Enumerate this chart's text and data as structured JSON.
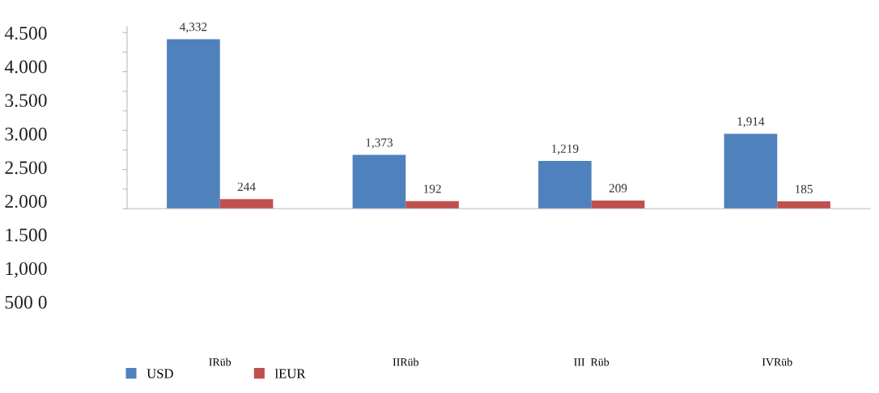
{
  "chart_data": {
    "type": "bar",
    "categories": [
      "IRüb",
      "IIRüb",
      "III  Rüb",
      "IVRüb"
    ],
    "series": [
      {
        "name": "USD",
        "color": "#4f81bd",
        "values": [
          4332,
          1373,
          1219,
          1914
        ],
        "value_labels": [
          "4,332",
          "1,373",
          "1,219",
          "1,914"
        ]
      },
      {
        "name": "lEUR",
        "color": "#c0504d",
        "values": [
          244,
          192,
          209,
          185
        ],
        "value_labels": [
          "244",
          "192",
          "209",
          "185"
        ]
      }
    ],
    "ylim": [
      0,
      4650
    ],
    "yticks": [
      {
        "value": 0,
        "label": null
      },
      {
        "value": 500,
        "label": null
      },
      {
        "value": 1000,
        "label": null
      },
      {
        "value": 1500,
        "label": null
      },
      {
        "value": 2000,
        "label": null
      },
      {
        "value": 2500,
        "label": null
      },
      {
        "value": 3000,
        "label": null
      },
      {
        "value": 3500,
        "label": null
      },
      {
        "value": 4000,
        "label": null
      },
      {
        "value": 4500,
        "label": null
      }
    ],
    "annotations": [
      "4.500",
      "4.000",
      "3.500",
      "3.000",
      "2.500",
      "2.000",
      "1.500",
      "1,000",
      "500 0"
    ],
    "grid": false,
    "legend": "bottom left"
  }
}
